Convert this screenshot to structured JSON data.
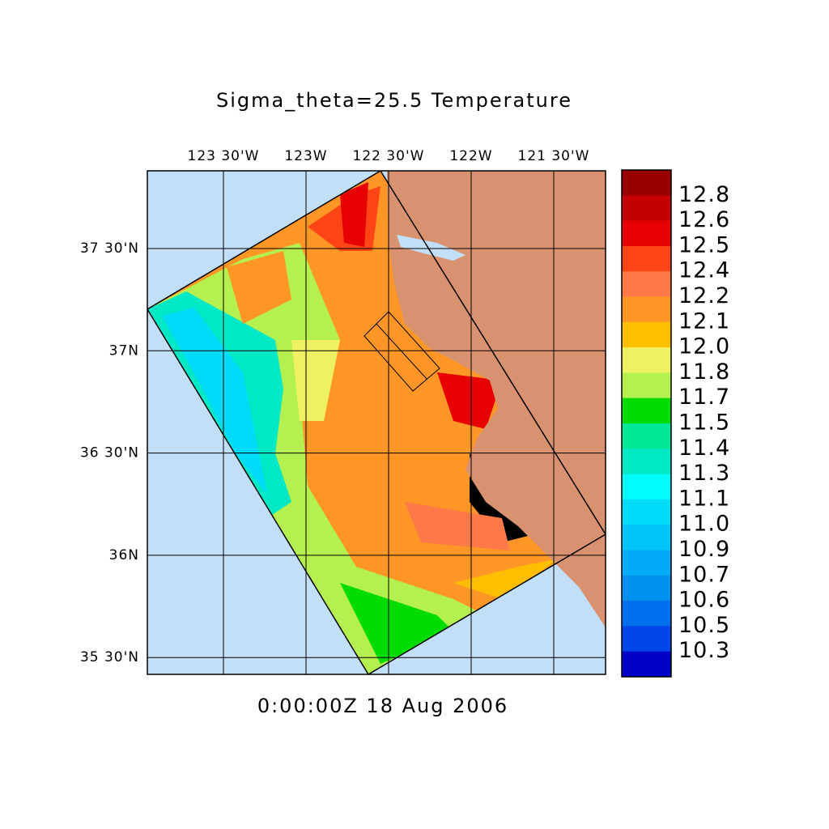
{
  "title": "Sigma_theta=25.5 Temperature",
  "lon_labels": [
    "123 30'W",
    "123W",
    "122 30'W",
    "122W",
    "121 30'W"
  ],
  "lat_labels": [
    "37 30'N",
    "37N",
    "36 30'N",
    "36N",
    "35 30'N"
  ],
  "colorbar": {
    "labels": [
      "12.8",
      "12.6",
      "12.5",
      "12.4",
      "12.2",
      "12.1",
      "12.0",
      "11.8",
      "11.7",
      "11.5",
      "11.4",
      "11.3",
      "11.1",
      "11.0",
      "10.9",
      "10.7",
      "10.6",
      "10.5",
      "10.3"
    ],
    "colors": [
      "#960000",
      "#c40000",
      "#e60000",
      "#ff4416",
      "#ff7848",
      "#ff9626",
      "#ffbe00",
      "#eef262",
      "#b4f050",
      "#00dc00",
      "#00e896",
      "#00e8c6",
      "#00fcfc",
      "#00dcf8",
      "#00c4f8",
      "#00aaf4",
      "#0090f0",
      "#0070f0",
      "#0046e8",
      "#0000c8"
    ]
  },
  "timestamp": "0:00:00Z  18 Aug 2006"
}
